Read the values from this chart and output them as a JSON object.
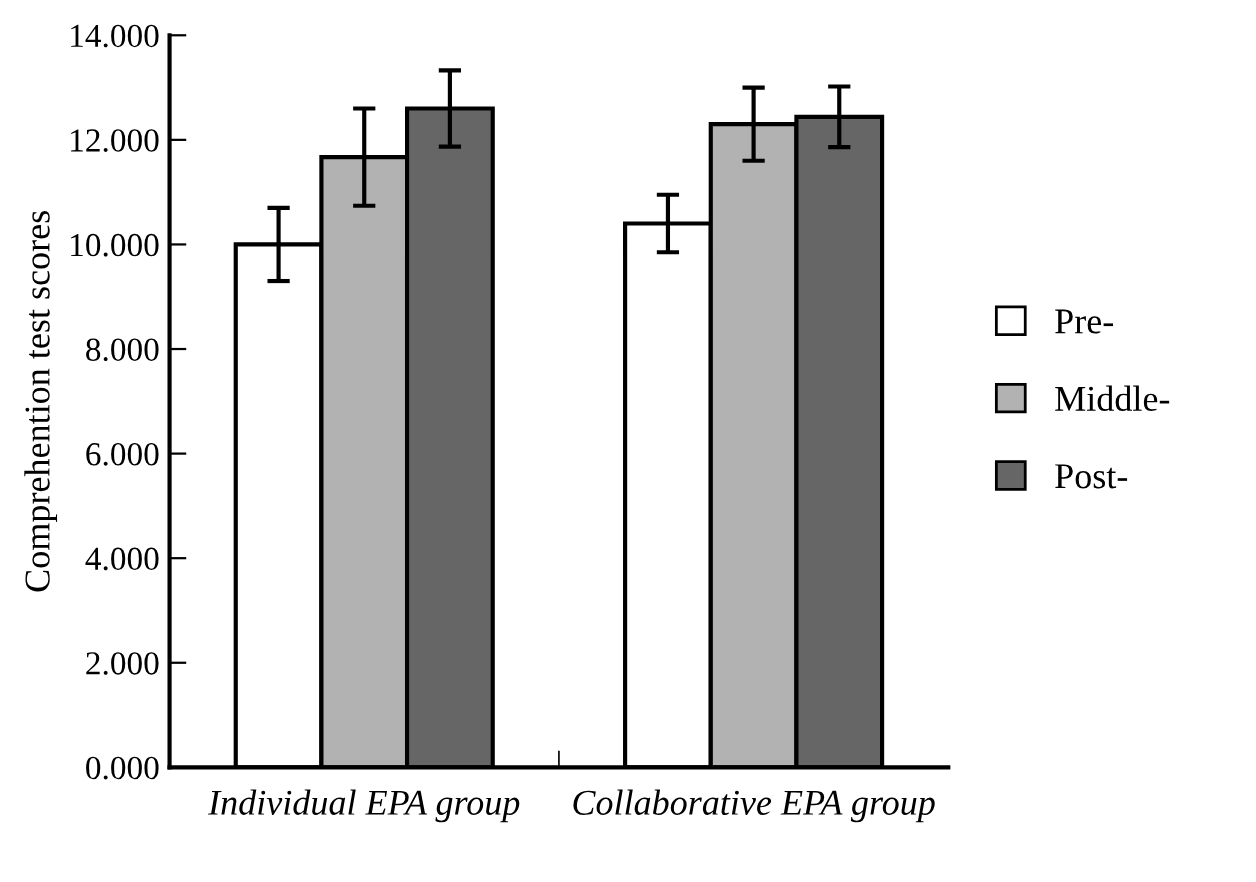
{
  "chart_data": {
    "type": "bar",
    "ylabel": "Comprehention test scores",
    "categories": [
      "Individual EPA group",
      "Collaborative EPA group"
    ],
    "series": [
      {
        "name": "Pre-",
        "color": "#ffffff",
        "values": [
          10.0,
          10.4
        ],
        "errors": [
          0.7,
          0.55
        ]
      },
      {
        "name": "Middle-",
        "color": "#b2b2b2",
        "values": [
          11.67,
          12.3
        ],
        "errors": [
          0.93,
          0.7
        ]
      },
      {
        "name": "Post-",
        "color": "#666666",
        "values": [
          12.6,
          12.44
        ],
        "errors": [
          0.73,
          0.58
        ]
      }
    ],
    "ylim": [
      0,
      14
    ],
    "yticks": [
      {
        "value": 0,
        "label": "0.000"
      },
      {
        "value": 2,
        "label": "2.000"
      },
      {
        "value": 4,
        "label": "4.000"
      },
      {
        "value": 6,
        "label": "6.000"
      },
      {
        "value": 8,
        "label": "8.000"
      },
      {
        "value": 10,
        "label": "10.000"
      },
      {
        "value": 12,
        "label": "12.000"
      },
      {
        "value": 14,
        "label": "14.000"
      }
    ],
    "grid": false,
    "legend": "right"
  }
}
